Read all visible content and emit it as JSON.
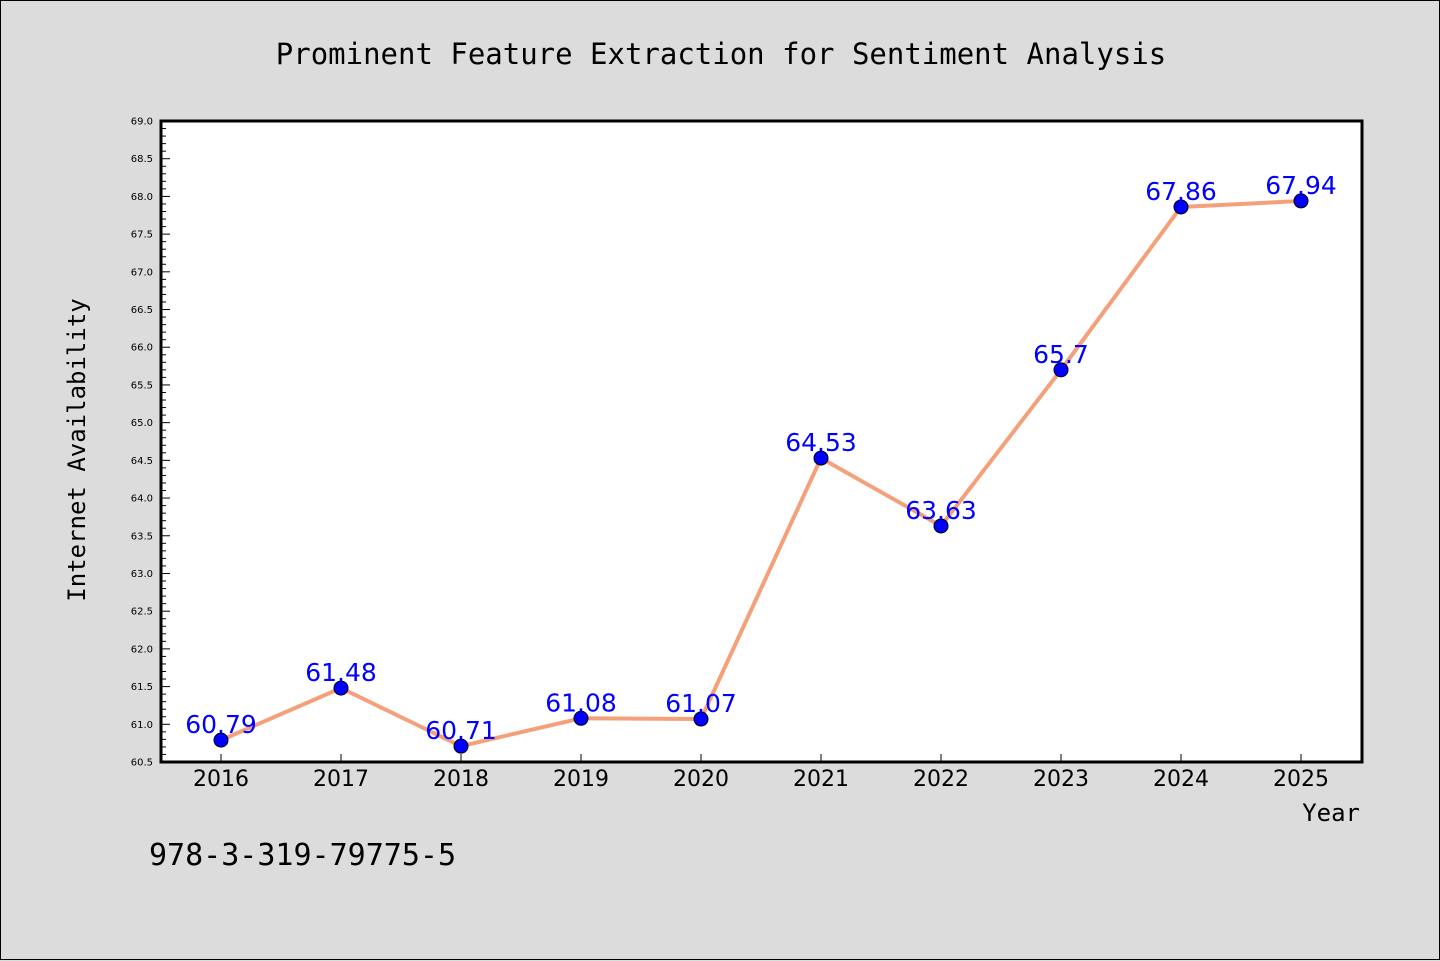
{
  "chart_data": {
    "type": "line",
    "title": "Prominent Feature Extraction for Sentiment Analysis",
    "xlabel": "Year",
    "ylabel": "Internet Availability",
    "categories": [
      "2016",
      "2017",
      "2018",
      "2019",
      "2020",
      "2021",
      "2022",
      "2023",
      "2024",
      "2025"
    ],
    "series": [
      {
        "values": [
          60.79,
          61.48,
          60.71,
          61.08,
          61.07,
          64.53,
          63.63,
          65.7,
          67.86,
          67.94
        ],
        "data_labels": [
          "60.79",
          "61.48",
          "60.71",
          "61.08",
          "61.07",
          "64.53",
          "63.63",
          "65.7",
          "67.86",
          "67.94"
        ],
        "line_color": "#f4a07a",
        "marker_color": "#0000ff"
      }
    ],
    "ylim": [
      60.5,
      69.0
    ],
    "yticks": [
      "60.5",
      "61.0",
      "61.5",
      "62.0",
      "62.5",
      "63.0",
      "63.5",
      "64.0",
      "64.5",
      "65.0",
      "65.5",
      "66.0",
      "66.5",
      "67.0",
      "67.5",
      "68.0",
      "68.5",
      "69.0"
    ],
    "grid": false,
    "legend": "none"
  },
  "annotation": "978-3-319-79775-5",
  "colors": {
    "background": "#dcdcdc",
    "plot_background": "#ffffff",
    "label_color": "#0000ff"
  }
}
